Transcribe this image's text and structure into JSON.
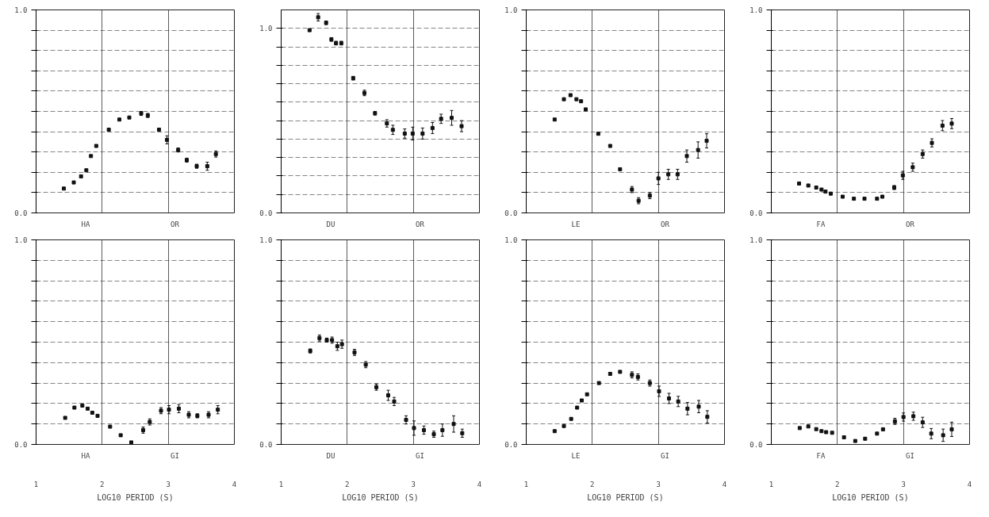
{
  "chart_data": [
    {
      "type": "scatter",
      "annotations": [
        "HA",
        "OR"
      ],
      "xlim": [
        1,
        4
      ],
      "ylim": [
        0,
        1
      ],
      "xticks": [
        1,
        2,
        3,
        4
      ],
      "yticks": [
        {
          "value": 0,
          "label": "0.0"
        },
        {
          "value": 0.1,
          "label": null
        },
        {
          "value": 0.2,
          "label": null
        },
        {
          "value": 0.3,
          "label": null
        },
        {
          "value": 0.4,
          "label": null
        },
        {
          "value": 0.5,
          "label": null
        },
        {
          "value": 0.6,
          "label": null
        },
        {
          "value": 0.7,
          "label": null
        },
        {
          "value": 0.8,
          "label": null
        },
        {
          "value": 0.9,
          "label": null
        },
        {
          "value": 1,
          "label": "1.0"
        }
      ],
      "grid": true,
      "marker": "square",
      "tick_labels": "y",
      "x": [
        1.42,
        1.57,
        1.68,
        1.76,
        1.83,
        1.91,
        2.1,
        2.26,
        2.41,
        2.59,
        2.69,
        2.86,
        2.98,
        3.15,
        3.28,
        3.43,
        3.59,
        3.72
      ],
      "series": [
        {
          "color": "#111111",
          "values": [
            0.12,
            0.15,
            0.18,
            0.21,
            0.28,
            0.33,
            0.41,
            0.46,
            0.47,
            0.49,
            0.48,
            0.41,
            0.36,
            0.31,
            0.26,
            0.23,
            0.23,
            0.29
          ],
          "errors": [
            null,
            null,
            null,
            null,
            null,
            null,
            null,
            null,
            null,
            0.01,
            0.01,
            null,
            0.02,
            0.01,
            0.01,
            0.01,
            0.02,
            0.015
          ]
        }
      ]
    },
    {
      "type": "scatter",
      "annotations": [
        "DU",
        "OR"
      ],
      "xlim": [
        1,
        4
      ],
      "ylim": [
        0,
        1.1
      ],
      "xticks": [
        1,
        2,
        3,
        4
      ],
      "yticks": [
        {
          "value": 0,
          "label": "0.0"
        },
        {
          "value": 0.1,
          "label": null
        },
        {
          "value": 0.2,
          "label": null
        },
        {
          "value": 0.3,
          "label": null
        },
        {
          "value": 0.4,
          "label": null
        },
        {
          "value": 0.5,
          "label": null
        },
        {
          "value": 0.6,
          "label": null
        },
        {
          "value": 0.7,
          "label": null
        },
        {
          "value": 0.8,
          "label": null
        },
        {
          "value": 0.9,
          "label": null
        },
        {
          "value": 1,
          "label": "1.0"
        }
      ],
      "grid": true,
      "marker": "square",
      "tick_labels": "y",
      "x": [
        1.43,
        1.56,
        1.68,
        1.76,
        1.83,
        1.91,
        2.09,
        2.26,
        2.42,
        2.6,
        2.69,
        2.87,
        2.99,
        3.14,
        3.29,
        3.42,
        3.58,
        3.73
      ],
      "series": [
        {
          "color": "#111111",
          "values": [
            0.99,
            1.06,
            1.03,
            0.94,
            0.92,
            0.92,
            0.73,
            0.65,
            0.54,
            0.485,
            0.45,
            0.43,
            0.43,
            0.43,
            0.46,
            0.51,
            0.515,
            0.47
          ],
          "errors": [
            null,
            0.02,
            0.01,
            0.01,
            0.01,
            0.01,
            0.01,
            0.015,
            0.01,
            0.02,
            0.025,
            0.025,
            0.035,
            0.03,
            0.03,
            0.025,
            0.04,
            0.03
          ]
        }
      ]
    },
    {
      "type": "scatter",
      "annotations": [
        "LE",
        "OR"
      ],
      "xlim": [
        1,
        4
      ],
      "ylim": [
        0,
        1
      ],
      "xticks": [
        1,
        2,
        3,
        4
      ],
      "yticks": [
        {
          "value": 0,
          "label": "0.0"
        },
        {
          "value": 0.1,
          "label": null
        },
        {
          "value": 0.2,
          "label": null
        },
        {
          "value": 0.3,
          "label": null
        },
        {
          "value": 0.4,
          "label": null
        },
        {
          "value": 0.5,
          "label": null
        },
        {
          "value": 0.6,
          "label": null
        },
        {
          "value": 0.7,
          "label": null
        },
        {
          "value": 0.8,
          "label": null
        },
        {
          "value": 0.9,
          "label": null
        },
        {
          "value": 1,
          "label": "1.0"
        }
      ],
      "grid": true,
      "marker": "square",
      "tick_labels": "y",
      "x": [
        1.43,
        1.57,
        1.67,
        1.76,
        1.83,
        1.9,
        2.09,
        2.27,
        2.42,
        2.6,
        2.7,
        2.87,
        3.0,
        3.15,
        3.29,
        3.43,
        3.6,
        3.73
      ],
      "series": [
        {
          "color": "#111111",
          "values": [
            0.46,
            0.56,
            0.58,
            0.56,
            0.55,
            0.51,
            0.39,
            0.33,
            0.215,
            0.115,
            0.06,
            0.085,
            0.17,
            0.19,
            0.19,
            0.28,
            0.31,
            0.355
          ],
          "errors": [
            null,
            null,
            null,
            null,
            null,
            null,
            null,
            null,
            null,
            0.015,
            0.015,
            0.015,
            0.03,
            0.025,
            0.025,
            0.03,
            0.04,
            0.035
          ]
        }
      ]
    },
    {
      "type": "scatter",
      "annotations": [
        "FA",
        "OR"
      ],
      "xlim": [
        1,
        4
      ],
      "ylim": [
        0,
        1
      ],
      "xticks": [
        1,
        2,
        3,
        4
      ],
      "yticks": [
        {
          "value": 0,
          "label": "0.0"
        },
        {
          "value": 0.1,
          "label": null
        },
        {
          "value": 0.2,
          "label": null
        },
        {
          "value": 0.3,
          "label": null
        },
        {
          "value": 0.4,
          "label": null
        },
        {
          "value": 0.5,
          "label": null
        },
        {
          "value": 0.6,
          "label": null
        },
        {
          "value": 0.7,
          "label": null
        },
        {
          "value": 0.8,
          "label": null
        },
        {
          "value": 0.9,
          "label": null
        },
        {
          "value": 1,
          "label": "1.0"
        }
      ],
      "grid": true,
      "marker": "square",
      "tick_labels": "y",
      "x": [
        1.42,
        1.56,
        1.68,
        1.76,
        1.82,
        1.9,
        2.08,
        2.25,
        2.41,
        2.6,
        2.68,
        2.86,
        2.99,
        3.14,
        3.29,
        3.43,
        3.59,
        3.73
      ],
      "series": [
        {
          "color": "#111111",
          "values": [
            0.145,
            0.135,
            0.125,
            0.115,
            0.105,
            0.095,
            0.08,
            0.07,
            0.07,
            0.07,
            0.08,
            0.125,
            0.185,
            0.225,
            0.29,
            0.345,
            0.43,
            0.44
          ],
          "errors": [
            null,
            null,
            null,
            null,
            null,
            null,
            null,
            null,
            null,
            null,
            null,
            0.01,
            0.02,
            0.02,
            0.02,
            0.02,
            0.025,
            0.025
          ]
        }
      ]
    },
    {
      "type": "scatter",
      "annotations": [
        "HA",
        "GI"
      ],
      "xlabel": "LOG10 PERIOD (S)",
      "xlim": [
        1,
        4
      ],
      "ylim": [
        0,
        1
      ],
      "xticks": [
        1,
        2,
        3,
        4
      ],
      "yticks": [
        {
          "value": 0,
          "label": "0.0"
        },
        {
          "value": 0.1,
          "label": null
        },
        {
          "value": 0.2,
          "label": null
        },
        {
          "value": 0.3,
          "label": null
        },
        {
          "value": 0.4,
          "label": null
        },
        {
          "value": 0.5,
          "label": null
        },
        {
          "value": 0.6,
          "label": null
        },
        {
          "value": 0.7,
          "label": null
        },
        {
          "value": 0.8,
          "label": null
        },
        {
          "value": 0.9,
          "label": null
        },
        {
          "value": 1,
          "label": "1.0"
        }
      ],
      "grid": true,
      "marker": "square",
      "x": [
        1.44,
        1.58,
        1.7,
        1.78,
        1.85,
        1.93,
        2.12,
        2.28,
        2.44,
        2.62,
        2.72,
        2.89,
        3.01,
        3.16,
        3.31,
        3.44,
        3.61,
        3.75
      ],
      "series": [
        {
          "color": "#111111",
          "values": [
            0.13,
            0.18,
            0.19,
            0.175,
            0.155,
            0.14,
            0.087,
            0.045,
            0.01,
            0.07,
            0.11,
            0.165,
            0.17,
            0.175,
            0.145,
            0.14,
            0.145,
            0.17
          ],
          "errors": [
            null,
            null,
            null,
            null,
            null,
            null,
            null,
            null,
            null,
            0.015,
            0.015,
            0.015,
            0.02,
            0.02,
            0.015,
            0.01,
            0.015,
            0.02
          ]
        }
      ]
    },
    {
      "type": "scatter",
      "annotations": [
        "DU",
        "GI"
      ],
      "xlabel": "LOG10 PERIOD (S)",
      "xlim": [
        1,
        4
      ],
      "ylim": [
        0,
        1
      ],
      "xticks": [
        1,
        2,
        3,
        4
      ],
      "yticks": [
        {
          "value": 0,
          "label": "0.0"
        },
        {
          "value": 0.1,
          "label": null
        },
        {
          "value": 0.2,
          "label": null
        },
        {
          "value": 0.3,
          "label": null
        },
        {
          "value": 0.4,
          "label": null
        },
        {
          "value": 0.5,
          "label": null
        },
        {
          "value": 0.6,
          "label": null
        },
        {
          "value": 0.7,
          "label": null
        },
        {
          "value": 0.8,
          "label": null
        },
        {
          "value": 0.9,
          "label": null
        },
        {
          "value": 1,
          "label": "1.0"
        }
      ],
      "grid": true,
      "marker": "square",
      "x": [
        1.44,
        1.58,
        1.69,
        1.77,
        1.85,
        1.92,
        2.11,
        2.28,
        2.44,
        2.62,
        2.71,
        2.89,
        3.01,
        3.16,
        3.31,
        3.44,
        3.61,
        3.74
      ],
      "series": [
        {
          "color": "#111111",
          "values": [
            0.457,
            0.52,
            0.51,
            0.51,
            0.48,
            0.49,
            0.45,
            0.39,
            0.28,
            0.24,
            0.21,
            0.12,
            0.08,
            0.07,
            0.05,
            0.07,
            0.1,
            0.055
          ],
          "errors": [
            0.01,
            0.015,
            0.01,
            0.015,
            0.02,
            0.02,
            0.015,
            0.015,
            0.015,
            0.025,
            0.02,
            0.02,
            0.035,
            0.02,
            0.015,
            0.03,
            0.04,
            0.02
          ]
        }
      ]
    },
    {
      "type": "scatter",
      "annotations": [
        "LE",
        "GI"
      ],
      "xlabel": "LOG10 PERIOD (S)",
      "xlim": [
        1,
        4
      ],
      "ylim": [
        0,
        1
      ],
      "xticks": [
        1,
        2,
        3,
        4
      ],
      "yticks": [
        {
          "value": 0,
          "label": "0.0"
        },
        {
          "value": 0.1,
          "label": null
        },
        {
          "value": 0.2,
          "label": null
        },
        {
          "value": 0.3,
          "label": null
        },
        {
          "value": 0.4,
          "label": null
        },
        {
          "value": 0.5,
          "label": null
        },
        {
          "value": 0.6,
          "label": null
        },
        {
          "value": 0.7,
          "label": null
        },
        {
          "value": 0.8,
          "label": null
        },
        {
          "value": 0.9,
          "label": null
        },
        {
          "value": 1,
          "label": "1.0"
        }
      ],
      "grid": true,
      "marker": "square",
      "x": [
        1.43,
        1.57,
        1.68,
        1.77,
        1.84,
        1.92,
        2.1,
        2.27,
        2.42,
        2.6,
        2.69,
        2.87,
        3.01,
        3.16,
        3.3,
        3.44,
        3.61,
        3.74
      ],
      "series": [
        {
          "color": "#111111",
          "values": [
            0.065,
            0.09,
            0.125,
            0.18,
            0.215,
            0.245,
            0.3,
            0.345,
            0.355,
            0.34,
            0.33,
            0.3,
            0.26,
            0.225,
            0.21,
            0.175,
            0.185,
            0.135
          ],
          "errors": [
            null,
            null,
            null,
            null,
            null,
            null,
            null,
            null,
            null,
            0.015,
            0.015,
            0.015,
            0.025,
            0.025,
            0.025,
            0.03,
            0.03,
            0.03
          ]
        }
      ]
    },
    {
      "type": "scatter",
      "annotations": [
        "FA",
        "GI"
      ],
      "xlabel": "LOG10 PERIOD (S)",
      "xlim": [
        1,
        4
      ],
      "ylim": [
        0,
        1
      ],
      "xticks": [
        1,
        2,
        3,
        4
      ],
      "yticks": [
        {
          "value": 0,
          "label": "0.0"
        },
        {
          "value": 0.1,
          "label": null
        },
        {
          "value": 0.2,
          "label": null
        },
        {
          "value": 0.3,
          "label": null
        },
        {
          "value": 0.4,
          "label": null
        },
        {
          "value": 0.5,
          "label": null
        },
        {
          "value": 0.6,
          "label": null
        },
        {
          "value": 0.7,
          "label": null
        },
        {
          "value": 0.8,
          "label": null
        },
        {
          "value": 0.9,
          "label": null
        },
        {
          "value": 1,
          "label": "1.0"
        }
      ],
      "grid": true,
      "marker": "square",
      "x": [
        1.43,
        1.56,
        1.68,
        1.76,
        1.83,
        1.92,
        2.1,
        2.27,
        2.42,
        2.6,
        2.69,
        2.87,
        3.0,
        3.15,
        3.29,
        3.42,
        3.6,
        3.73
      ],
      "series": [
        {
          "color": "#111111",
          "values": [
            0.08,
            0.088,
            0.075,
            0.065,
            0.06,
            0.057,
            0.035,
            0.017,
            0.028,
            0.053,
            0.074,
            0.113,
            0.134,
            0.138,
            0.108,
            0.053,
            0.045,
            0.074
          ],
          "errors": [
            null,
            null,
            null,
            null,
            null,
            null,
            null,
            null,
            null,
            null,
            null,
            0.015,
            0.02,
            0.02,
            0.025,
            0.025,
            0.03,
            0.035
          ]
        }
      ]
    }
  ]
}
